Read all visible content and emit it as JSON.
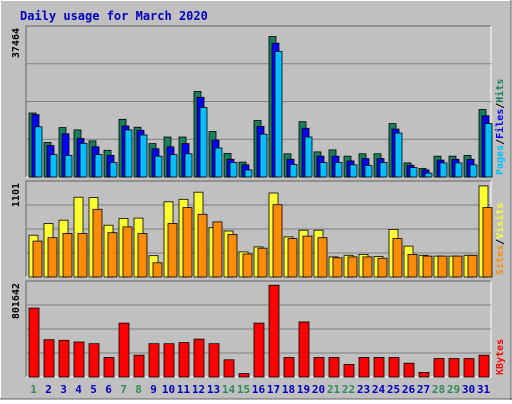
{
  "title": "Daily usage for March 2020",
  "colors": {
    "bg": "#c0c0c0",
    "title": "#0000c0",
    "hits": "#1a7f5e",
    "files": "#0000ff",
    "pages": "#00bfff",
    "visits": "#ffff33",
    "sites": "#ff8c00",
    "kbytes": "#ff0000",
    "weekend_label": "#2e8b57",
    "weekday_label": "#0000c0"
  },
  "chart_data": [
    {
      "type": "bar",
      "panel": "top",
      "ymax_label": "37464",
      "ylim": [
        0,
        37464
      ],
      "grid": true,
      "legend": {
        "placement": "right",
        "entries": [
          "Pages",
          "Files",
          "Hits"
        ],
        "separator": "/"
      },
      "categories": [
        "1",
        "2",
        "3",
        "4",
        "5",
        "6",
        "7",
        "8",
        "9",
        "10",
        "11",
        "12",
        "13",
        "14",
        "15",
        "16",
        "17",
        "18",
        "19",
        "20",
        "21",
        "22",
        "23",
        "24",
        "25",
        "26",
        "27",
        "28",
        "29",
        "30",
        "31"
      ],
      "series": [
        {
          "name": "Hits",
          "values": [
            16300,
            8800,
            12600,
            12000,
            9200,
            6800,
            14700,
            12700,
            8500,
            10200,
            10200,
            21800,
            11600,
            6000,
            3800,
            14400,
            35800,
            5900,
            14100,
            6400,
            6900,
            5300,
            5900,
            5900,
            13600,
            3600,
            2200,
            5300,
            5300,
            5500,
            17200
          ]
        },
        {
          "name": "Files",
          "values": [
            15900,
            8000,
            11000,
            9800,
            7700,
            5500,
            13000,
            11900,
            7200,
            7700,
            8500,
            20300,
            9400,
            4500,
            3100,
            12900,
            34100,
            4500,
            12400,
            5300,
            5300,
            4100,
            4700,
            4700,
            12200,
            3000,
            1800,
            4300,
            4500,
            4500,
            15600
          ]
        },
        {
          "name": "Pages",
          "values": [
            12800,
            5700,
            5500,
            8600,
            5700,
            3700,
            12000,
            10700,
            5300,
            5700,
            5900,
            17700,
            7400,
            3700,
            1800,
            10900,
            32000,
            3200,
            10200,
            3700,
            3700,
            3100,
            2900,
            3700,
            11200,
            2400,
            1000,
            3600,
            3600,
            3100,
            13600
          ]
        }
      ]
    },
    {
      "type": "bar",
      "panel": "middle",
      "ymax_label": "1101",
      "ylim": [
        0,
        1101
      ],
      "grid": true,
      "legend": {
        "placement": "right",
        "entries": [
          "Sites",
          "Visits"
        ],
        "separator": "/"
      },
      "categories": [
        "1",
        "2",
        "3",
        "4",
        "5",
        "6",
        "7",
        "8",
        "9",
        "10",
        "11",
        "12",
        "13",
        "14",
        "15",
        "16",
        "17",
        "18",
        "19",
        "20",
        "21",
        "22",
        "23",
        "24",
        "25",
        "26",
        "27",
        "28",
        "29",
        "30",
        "31"
      ],
      "series": [
        {
          "name": "Visits",
          "values": [
            500,
            640,
            680,
            955,
            950,
            620,
            700,
            705,
            255,
            900,
            930,
            1015,
            590,
            550,
            300,
            360,
            1005,
            480,
            560,
            560,
            240,
            260,
            270,
            245,
            570,
            370,
            260,
            250,
            250,
            260,
            1090
          ]
        },
        {
          "name": "Sites",
          "values": [
            430,
            470,
            520,
            520,
            810,
            530,
            600,
            520,
            170,
            640,
            830,
            750,
            660,
            510,
            275,
            345,
            865,
            460,
            490,
            470,
            230,
            240,
            240,
            225,
            460,
            270,
            250,
            250,
            250,
            260,
            830
          ]
        }
      ]
    },
    {
      "type": "bar",
      "panel": "bottom",
      "ymax_label": "801642",
      "ylim": [
        0,
        801642
      ],
      "grid": true,
      "legend": {
        "placement": "right",
        "entries": [
          "KBytes"
        ],
        "separator": "/"
      },
      "categories": [
        "1",
        "2",
        "3",
        "4",
        "5",
        "6",
        "7",
        "8",
        "9",
        "10",
        "11",
        "12",
        "13",
        "14",
        "15",
        "16",
        "17",
        "18",
        "19",
        "20",
        "21",
        "22",
        "23",
        "24",
        "25",
        "26",
        "27",
        "28",
        "29",
        "30",
        "31"
      ],
      "series": [
        {
          "name": "KBytes",
          "values": [
            600000,
            325000,
            320000,
            305000,
            290000,
            170000,
            470000,
            190000,
            290000,
            290000,
            300000,
            330000,
            290000,
            150000,
            30000,
            470000,
            800000,
            170000,
            480000,
            170000,
            170000,
            110000,
            170000,
            170000,
            170000,
            120000,
            40000,
            160000,
            160000,
            160000,
            190000
          ]
        }
      ]
    }
  ],
  "x_labels": [
    {
      "text": "1",
      "weekend": true
    },
    {
      "text": "2",
      "weekend": false
    },
    {
      "text": "3",
      "weekend": false
    },
    {
      "text": "4",
      "weekend": false
    },
    {
      "text": "5",
      "weekend": false
    },
    {
      "text": "6",
      "weekend": false
    },
    {
      "text": "7",
      "weekend": true
    },
    {
      "text": "8",
      "weekend": true
    },
    {
      "text": "9",
      "weekend": false
    },
    {
      "text": "10",
      "weekend": false
    },
    {
      "text": "11",
      "weekend": false
    },
    {
      "text": "12",
      "weekend": false
    },
    {
      "text": "13",
      "weekend": false
    },
    {
      "text": "14",
      "weekend": true
    },
    {
      "text": "15",
      "weekend": true
    },
    {
      "text": "16",
      "weekend": false
    },
    {
      "text": "17",
      "weekend": false
    },
    {
      "text": "18",
      "weekend": false
    },
    {
      "text": "19",
      "weekend": false
    },
    {
      "text": "20",
      "weekend": false
    },
    {
      "text": "21",
      "weekend": true
    },
    {
      "text": "22",
      "weekend": true
    },
    {
      "text": "23",
      "weekend": false
    },
    {
      "text": "24",
      "weekend": false
    },
    {
      "text": "25",
      "weekend": false
    },
    {
      "text": "26",
      "weekend": false
    },
    {
      "text": "27",
      "weekend": false
    },
    {
      "text": "28",
      "weekend": true
    },
    {
      "text": "29",
      "weekend": true
    },
    {
      "text": "30",
      "weekend": false
    },
    {
      "text": "31",
      "weekend": false
    }
  ]
}
